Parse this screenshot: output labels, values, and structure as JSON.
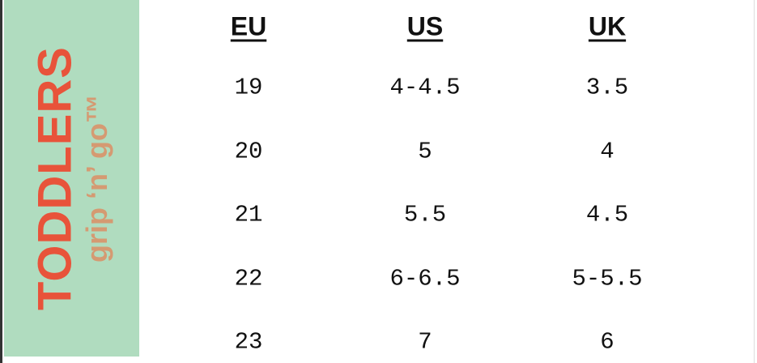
{
  "header": {
    "title": "TODDLERS",
    "subtitle": "grip ‘n’ go™"
  },
  "table": {
    "columns": [
      "EU",
      "US",
      "UK"
    ],
    "rows": [
      [
        "19",
        "4-4.5",
        "3.5"
      ],
      [
        "20",
        "5",
        "4"
      ],
      [
        "21",
        "5.5",
        "4.5"
      ],
      [
        "22",
        "6-6.5",
        "5-5.5"
      ],
      [
        "23",
        "7",
        "6"
      ]
    ]
  }
}
